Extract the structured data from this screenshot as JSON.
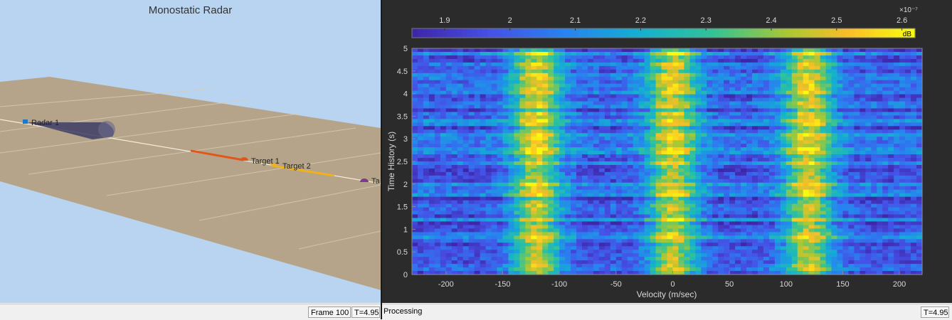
{
  "left_panel": {
    "title": "Monostatic Radar",
    "labels": {
      "radar": "Radar 1",
      "target1": "Target 1",
      "target2": "Target 2",
      "target3": "Ta"
    },
    "colors": {
      "sky": "#b8d4f0",
      "ground": "#b5a48a",
      "radar_marker": "#1f77c8",
      "target1": "#e0561c",
      "target2": "#f0b21c",
      "target3": "#7a3b8c",
      "beam": "#3c3d64"
    }
  },
  "status_bar_left": {
    "frame": "Frame 100",
    "time": "T=4.95"
  },
  "status_bar_right": {
    "status": "Processing",
    "time": "T=4.95"
  },
  "colorbar": {
    "ticks": [
      "1.9",
      "2",
      "2.1",
      "2.2",
      "2.3",
      "2.4",
      "2.5",
      "2.6"
    ],
    "exponent": "×10⁻⁷",
    "unit": "dB",
    "colormap": "parula",
    "range": [
      1.9e-07,
      2.6e-07
    ]
  },
  "chart_data": {
    "type": "heatmap",
    "xlabel": "Velocity (m/sec)",
    "ylabel": "Time History (s)",
    "xlim": [
      -230,
      220
    ],
    "ylim": [
      0,
      5
    ],
    "x_ticks": [
      "-200",
      "-150",
      "-100",
      "-50",
      "0",
      "50",
      "100",
      "150",
      "200"
    ],
    "y_ticks": [
      "0",
      "0.5",
      "1",
      "1.5",
      "2",
      "2.5",
      "3",
      "3.5",
      "4",
      "4.5",
      "5"
    ],
    "peaks_velocity": [
      -120,
      0,
      120
    ],
    "value_range": [
      1.9e-07,
      2.6e-07
    ]
  }
}
